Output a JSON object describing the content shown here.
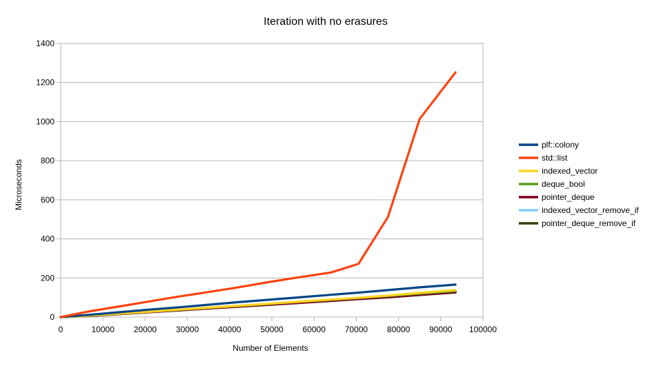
{
  "chart_data": {
    "type": "line",
    "title": "Iteration with no erasures",
    "xlabel": "Number of Elements",
    "ylabel": "Microseconds",
    "xlim": [
      0,
      100000
    ],
    "ylim": [
      0,
      1400
    ],
    "xticks": [
      0,
      10000,
      20000,
      30000,
      40000,
      50000,
      60000,
      70000,
      80000,
      90000,
      100000
    ],
    "yticks": [
      0,
      200,
      400,
      600,
      800,
      1000,
      1200,
      1400
    ],
    "grid": true,
    "legend_position": "right",
    "series": [
      {
        "name": "plf::colony",
        "color": "#004586",
        "points": [
          [
            0,
            0
          ],
          [
            7000,
            12
          ],
          [
            14000,
            25
          ],
          [
            21000,
            38
          ],
          [
            28000,
            50
          ],
          [
            35000,
            63
          ],
          [
            42000,
            76
          ],
          [
            49000,
            88
          ],
          [
            56000,
            100
          ],
          [
            63000,
            112
          ],
          [
            70000,
            124
          ],
          [
            77500,
            138
          ],
          [
            85000,
            152
          ],
          [
            93500,
            166
          ]
        ]
      },
      {
        "name": "std::list",
        "color": "#ff420e",
        "points": [
          [
            0,
            0
          ],
          [
            7000,
            30
          ],
          [
            14000,
            55
          ],
          [
            21000,
            80
          ],
          [
            28000,
            105
          ],
          [
            35000,
            128
          ],
          [
            42000,
            152
          ],
          [
            49000,
            178
          ],
          [
            56000,
            202
          ],
          [
            64000,
            228
          ],
          [
            70500,
            272
          ],
          [
            77500,
            512
          ],
          [
            85000,
            1013
          ],
          [
            93500,
            1252
          ]
        ]
      },
      {
        "name": "indexed_vector",
        "color": "#ffd320",
        "points": [
          [
            0,
            0
          ],
          [
            7000,
            8
          ],
          [
            14000,
            18
          ],
          [
            21000,
            28
          ],
          [
            28000,
            38
          ],
          [
            35000,
            48
          ],
          [
            42000,
            58
          ],
          [
            49000,
            68
          ],
          [
            56000,
            78
          ],
          [
            63000,
            88
          ],
          [
            70000,
            98
          ],
          [
            77500,
            110
          ],
          [
            85000,
            124
          ],
          [
            93500,
            138
          ]
        ]
      },
      {
        "name": "deque_bool",
        "color": "#579d1c",
        "points": [
          [
            0,
            0
          ],
          [
            7000,
            7
          ],
          [
            14000,
            17
          ],
          [
            21000,
            27
          ],
          [
            28000,
            37
          ],
          [
            35000,
            47
          ],
          [
            42000,
            57
          ],
          [
            49000,
            67
          ],
          [
            56000,
            77
          ],
          [
            63000,
            87
          ],
          [
            70000,
            97
          ],
          [
            77500,
            108
          ],
          [
            85000,
            120
          ],
          [
            93500,
            133
          ]
        ]
      },
      {
        "name": "pointer_deque",
        "color": "#7e0021",
        "points": [
          [
            0,
            0
          ],
          [
            7000,
            6
          ],
          [
            14000,
            15
          ],
          [
            21000,
            25
          ],
          [
            28000,
            35
          ],
          [
            35000,
            44
          ],
          [
            42000,
            54
          ],
          [
            49000,
            63
          ],
          [
            56000,
            72
          ],
          [
            63000,
            82
          ],
          [
            70000,
            92
          ],
          [
            77500,
            102
          ],
          [
            85000,
            114
          ],
          [
            93500,
            127
          ]
        ]
      },
      {
        "name": "indexed_vector_remove_if",
        "color": "#83caff",
        "points": [
          [
            0,
            0
          ],
          [
            7000,
            7
          ],
          [
            14000,
            16
          ],
          [
            21000,
            26
          ],
          [
            28000,
            36
          ],
          [
            35000,
            46
          ],
          [
            42000,
            56
          ],
          [
            49000,
            65
          ],
          [
            56000,
            75
          ],
          [
            63000,
            85
          ],
          [
            70000,
            95
          ],
          [
            77500,
            106
          ],
          [
            85000,
            118
          ],
          [
            93500,
            131
          ]
        ]
      },
      {
        "name": "pointer_deque_remove_if",
        "color": "#314004",
        "points": [
          [
            0,
            0
          ],
          [
            7000,
            6
          ],
          [
            14000,
            15
          ],
          [
            21000,
            25
          ],
          [
            28000,
            34
          ],
          [
            35000,
            44
          ],
          [
            42000,
            53
          ],
          [
            49000,
            62
          ],
          [
            56000,
            72
          ],
          [
            63000,
            81
          ],
          [
            70000,
            91
          ],
          [
            77500,
            101
          ],
          [
            85000,
            113
          ],
          [
            93500,
            126
          ]
        ]
      }
    ]
  }
}
